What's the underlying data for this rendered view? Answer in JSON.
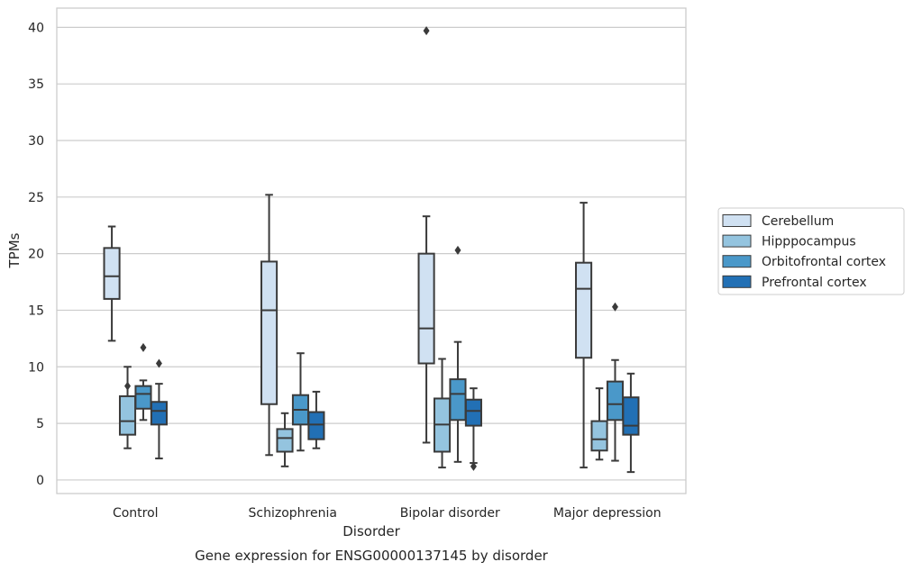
{
  "chart_data": {
    "type": "box",
    "xlabel": "Disorder",
    "ylabel": "TPMs",
    "caption": "Gene expression for ENSG00000137145 by disorder",
    "categories": [
      "Control",
      "Schizophrenia",
      "Bipolar disorder",
      "Major depression"
    ],
    "ylim": [
      -1.2,
      41.7
    ],
    "yticks": [
      0,
      5,
      10,
      15,
      20,
      25,
      30,
      35,
      40
    ],
    "grid": true,
    "legend_position": "right",
    "series": [
      {
        "name": "Cerebellum",
        "color": "#d0e1f2",
        "boxes": [
          {
            "whislo": 12.3,
            "q1": 16.0,
            "med": 18.0,
            "q3": 20.5,
            "whishi": 22.4,
            "fliers": []
          },
          {
            "whislo": 2.2,
            "q1": 6.7,
            "med": 15.0,
            "q3": 19.3,
            "whishi": 25.2,
            "fliers": []
          },
          {
            "whislo": 3.3,
            "q1": 10.3,
            "med": 13.4,
            "q3": 20.0,
            "whishi": 23.3,
            "fliers": [
              39.7
            ]
          },
          {
            "whislo": 1.1,
            "q1": 10.8,
            "med": 16.9,
            "q3": 19.2,
            "whishi": 24.5,
            "fliers": []
          }
        ]
      },
      {
        "name": "Hipppocampus",
        "color": "#94c4df",
        "boxes": [
          {
            "whislo": 2.8,
            "q1": 4.0,
            "med": 5.2,
            "q3": 7.4,
            "whishi": 10.0,
            "fliers": [
              8.3
            ]
          },
          {
            "whislo": 1.2,
            "q1": 2.5,
            "med": 3.7,
            "q3": 4.5,
            "whishi": 5.9,
            "fliers": []
          },
          {
            "whislo": 1.1,
            "q1": 2.5,
            "med": 4.9,
            "q3": 7.2,
            "whishi": 10.7,
            "fliers": []
          },
          {
            "whislo": 1.8,
            "q1": 2.6,
            "med": 3.6,
            "q3": 5.2,
            "whishi": 8.1,
            "fliers": []
          }
        ]
      },
      {
        "name": "Orbitofrontal cortex",
        "color": "#4a98c9",
        "boxes": [
          {
            "whislo": 5.3,
            "q1": 6.3,
            "med": 7.6,
            "q3": 8.3,
            "whishi": 8.8,
            "fliers": [
              11.7
            ]
          },
          {
            "whislo": 2.6,
            "q1": 4.9,
            "med": 6.2,
            "q3": 7.5,
            "whishi": 11.2,
            "fliers": []
          },
          {
            "whislo": 1.6,
            "q1": 5.3,
            "med": 7.6,
            "q3": 8.9,
            "whishi": 12.2,
            "fliers": [
              20.3
            ]
          },
          {
            "whislo": 1.7,
            "q1": 5.3,
            "med": 6.7,
            "q3": 8.7,
            "whishi": 10.6,
            "fliers": [
              15.3
            ]
          }
        ]
      },
      {
        "name": "Prefrontal cortex",
        "color": "#2270b5",
        "boxes": [
          {
            "whislo": 1.9,
            "q1": 4.9,
            "med": 6.1,
            "q3": 6.9,
            "whishi": 8.5,
            "fliers": [
              10.3
            ]
          },
          {
            "whislo": 2.8,
            "q1": 3.6,
            "med": 4.9,
            "q3": 6.0,
            "whishi": 7.8,
            "fliers": []
          },
          {
            "whislo": 1.5,
            "q1": 4.8,
            "med": 6.1,
            "q3": 7.1,
            "whishi": 8.1,
            "fliers": [
              1.2
            ]
          },
          {
            "whislo": 0.7,
            "q1": 4.0,
            "med": 4.8,
            "q3": 7.3,
            "whishi": 9.4,
            "fliers": []
          }
        ]
      }
    ]
  }
}
